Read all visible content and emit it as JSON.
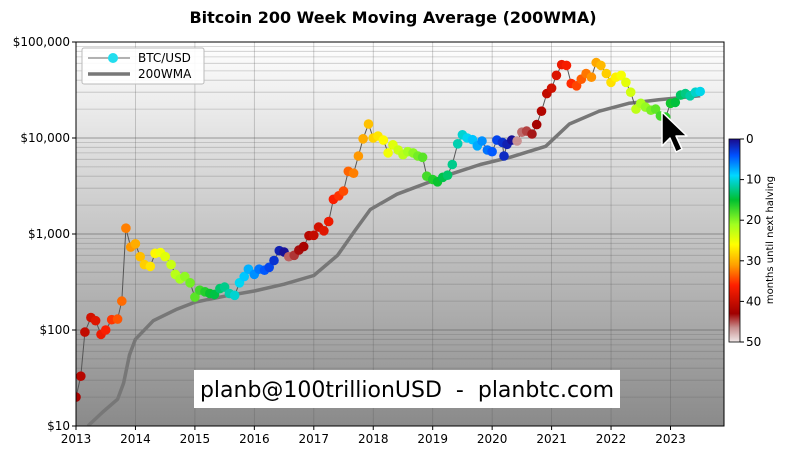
{
  "chart_data": {
    "type": "scatter",
    "title": "Bitcoin 200 Week Moving Average (200WMA)",
    "xlabel": "",
    "ylabel": "",
    "y_scale": "log",
    "xlim": [
      2013,
      2023.9
    ],
    "ylim": [
      10,
      100000
    ],
    "x_ticks": [
      "2013",
      "2014",
      "2015",
      "2016",
      "2017",
      "2018",
      "2019",
      "2020",
      "2021",
      "2022",
      "2023"
    ],
    "y_ticks": [
      "$10",
      "$100",
      "$1,000",
      "$10,000",
      "$100,000"
    ],
    "grid": true,
    "legend": {
      "position": "top-left",
      "entries": [
        "BTC/USD",
        "200WMA"
      ]
    },
    "colorbar": {
      "label": "months until next halving",
      "ticks": [
        "0",
        "10",
        "20",
        "30",
        "40",
        "50"
      ],
      "range": [
        0,
        50
      ]
    },
    "annotation": "planb@100trillionUSD  -  planbtc.com",
    "series": [
      {
        "name": "BTC/USD",
        "marker": "dot",
        "points": [
          [
            2013.0,
            20
          ],
          [
            2013.08,
            33
          ],
          [
            2013.15,
            95
          ],
          [
            2013.25,
            135
          ],
          [
            2013.33,
            125
          ],
          [
            2013.42,
            90
          ],
          [
            2013.5,
            100
          ],
          [
            2013.6,
            128
          ],
          [
            2013.7,
            130
          ],
          [
            2013.77,
            200
          ],
          [
            2013.84,
            1150
          ],
          [
            2013.92,
            730
          ],
          [
            2014.0,
            790
          ],
          [
            2014.08,
            580
          ],
          [
            2014.15,
            480
          ],
          [
            2014.25,
            460
          ],
          [
            2014.33,
            630
          ],
          [
            2014.42,
            640
          ],
          [
            2014.5,
            580
          ],
          [
            2014.6,
            480
          ],
          [
            2014.67,
            380
          ],
          [
            2014.75,
            340
          ],
          [
            2014.83,
            360
          ],
          [
            2014.92,
            310
          ],
          [
            2015.0,
            220
          ],
          [
            2015.08,
            260
          ],
          [
            2015.17,
            250
          ],
          [
            2015.25,
            240
          ],
          [
            2015.33,
            235
          ],
          [
            2015.42,
            270
          ],
          [
            2015.5,
            280
          ],
          [
            2015.58,
            240
          ],
          [
            2015.67,
            230
          ],
          [
            2015.75,
            310
          ],
          [
            2015.83,
            360
          ],
          [
            2015.9,
            430
          ],
          [
            2016.0,
            380
          ],
          [
            2016.08,
            430
          ],
          [
            2016.17,
            420
          ],
          [
            2016.25,
            450
          ],
          [
            2016.33,
            530
          ],
          [
            2016.42,
            670
          ],
          [
            2016.5,
            650
          ],
          [
            2016.58,
            580
          ],
          [
            2016.67,
            600
          ],
          [
            2016.75,
            680
          ],
          [
            2016.83,
            740
          ],
          [
            2016.92,
            960
          ],
          [
            2017.0,
            970
          ],
          [
            2017.08,
            1180
          ],
          [
            2017.17,
            1080
          ],
          [
            2017.25,
            1350
          ],
          [
            2017.33,
            2300
          ],
          [
            2017.42,
            2500
          ],
          [
            2017.5,
            2800
          ],
          [
            2017.58,
            4500
          ],
          [
            2017.67,
            4300
          ],
          [
            2017.75,
            6500
          ],
          [
            2017.83,
            9800
          ],
          [
            2017.92,
            14000
          ],
          [
            2018.0,
            10000
          ],
          [
            2018.08,
            10500
          ],
          [
            2018.17,
            9500
          ],
          [
            2018.25,
            7000
          ],
          [
            2018.33,
            8500
          ],
          [
            2018.42,
            7500
          ],
          [
            2018.5,
            6700
          ],
          [
            2018.58,
            7200
          ],
          [
            2018.67,
            7000
          ],
          [
            2018.75,
            6500
          ],
          [
            2018.83,
            6300
          ],
          [
            2018.9,
            4000
          ],
          [
            2019.0,
            3700
          ],
          [
            2019.08,
            3500
          ],
          [
            2019.17,
            3900
          ],
          [
            2019.25,
            4100
          ],
          [
            2019.33,
            5300
          ],
          [
            2019.42,
            8700
          ],
          [
            2019.5,
            10800
          ],
          [
            2019.58,
            10000
          ],
          [
            2019.67,
            9600
          ],
          [
            2019.75,
            8300
          ],
          [
            2019.83,
            9300
          ],
          [
            2019.92,
            7500
          ],
          [
            2020.0,
            7200
          ],
          [
            2020.08,
            9500
          ],
          [
            2020.17,
            9000
          ],
          [
            2020.2,
            6500
          ],
          [
            2020.25,
            8600
          ],
          [
            2020.33,
            9500
          ],
          [
            2020.42,
            9300
          ],
          [
            2020.5,
            11500
          ],
          [
            2020.58,
            11800
          ],
          [
            2020.67,
            11000
          ],
          [
            2020.75,
            13800
          ],
          [
            2020.83,
            19000
          ],
          [
            2020.92,
            29000
          ],
          [
            2021.0,
            33000
          ],
          [
            2021.08,
            45000
          ],
          [
            2021.17,
            58000
          ],
          [
            2021.25,
            57000
          ],
          [
            2021.33,
            37000
          ],
          [
            2021.42,
            35000
          ],
          [
            2021.5,
            41000
          ],
          [
            2021.58,
            47000
          ],
          [
            2021.67,
            43000
          ],
          [
            2021.75,
            61000
          ],
          [
            2021.83,
            57000
          ],
          [
            2021.92,
            47000
          ],
          [
            2022.0,
            38000
          ],
          [
            2022.08,
            43000
          ],
          [
            2022.17,
            45000
          ],
          [
            2022.25,
            38000
          ],
          [
            2022.33,
            30000
          ],
          [
            2022.42,
            20000
          ],
          [
            2022.5,
            23000
          ],
          [
            2022.58,
            21000
          ],
          [
            2022.67,
            19500
          ],
          [
            2022.75,
            20000
          ],
          [
            2022.83,
            17000
          ],
          [
            2022.92,
            16500
          ],
          [
            2023.0,
            23000
          ],
          [
            2023.08,
            23500
          ],
          [
            2023.17,
            28000
          ],
          [
            2023.25,
            29000
          ],
          [
            2023.33,
            27500
          ],
          [
            2023.42,
            30000
          ],
          [
            2023.5,
            30500
          ]
        ]
      },
      {
        "name": "200WMA",
        "marker": "line",
        "points": [
          [
            2013.2,
            10
          ],
          [
            2013.45,
            14
          ],
          [
            2013.7,
            19
          ],
          [
            2013.8,
            28
          ],
          [
            2013.9,
            55
          ],
          [
            2014.0,
            80
          ],
          [
            2014.3,
            125
          ],
          [
            2014.7,
            165
          ],
          [
            2015.0,
            195
          ],
          [
            2015.5,
            225
          ],
          [
            2016.0,
            255
          ],
          [
            2016.5,
            300
          ],
          [
            2017.0,
            370
          ],
          [
            2017.4,
            600
          ],
          [
            2017.7,
            1100
          ],
          [
            2017.95,
            1800
          ],
          [
            2018.4,
            2600
          ],
          [
            2018.9,
            3400
          ],
          [
            2019.3,
            4200
          ],
          [
            2019.8,
            5300
          ],
          [
            2020.3,
            6300
          ],
          [
            2020.9,
            8200
          ],
          [
            2021.3,
            14000
          ],
          [
            2021.8,
            19000
          ],
          [
            2022.3,
            23000
          ],
          [
            2022.8,
            25000
          ],
          [
            2023.5,
            27500
          ]
        ]
      }
    ]
  }
}
